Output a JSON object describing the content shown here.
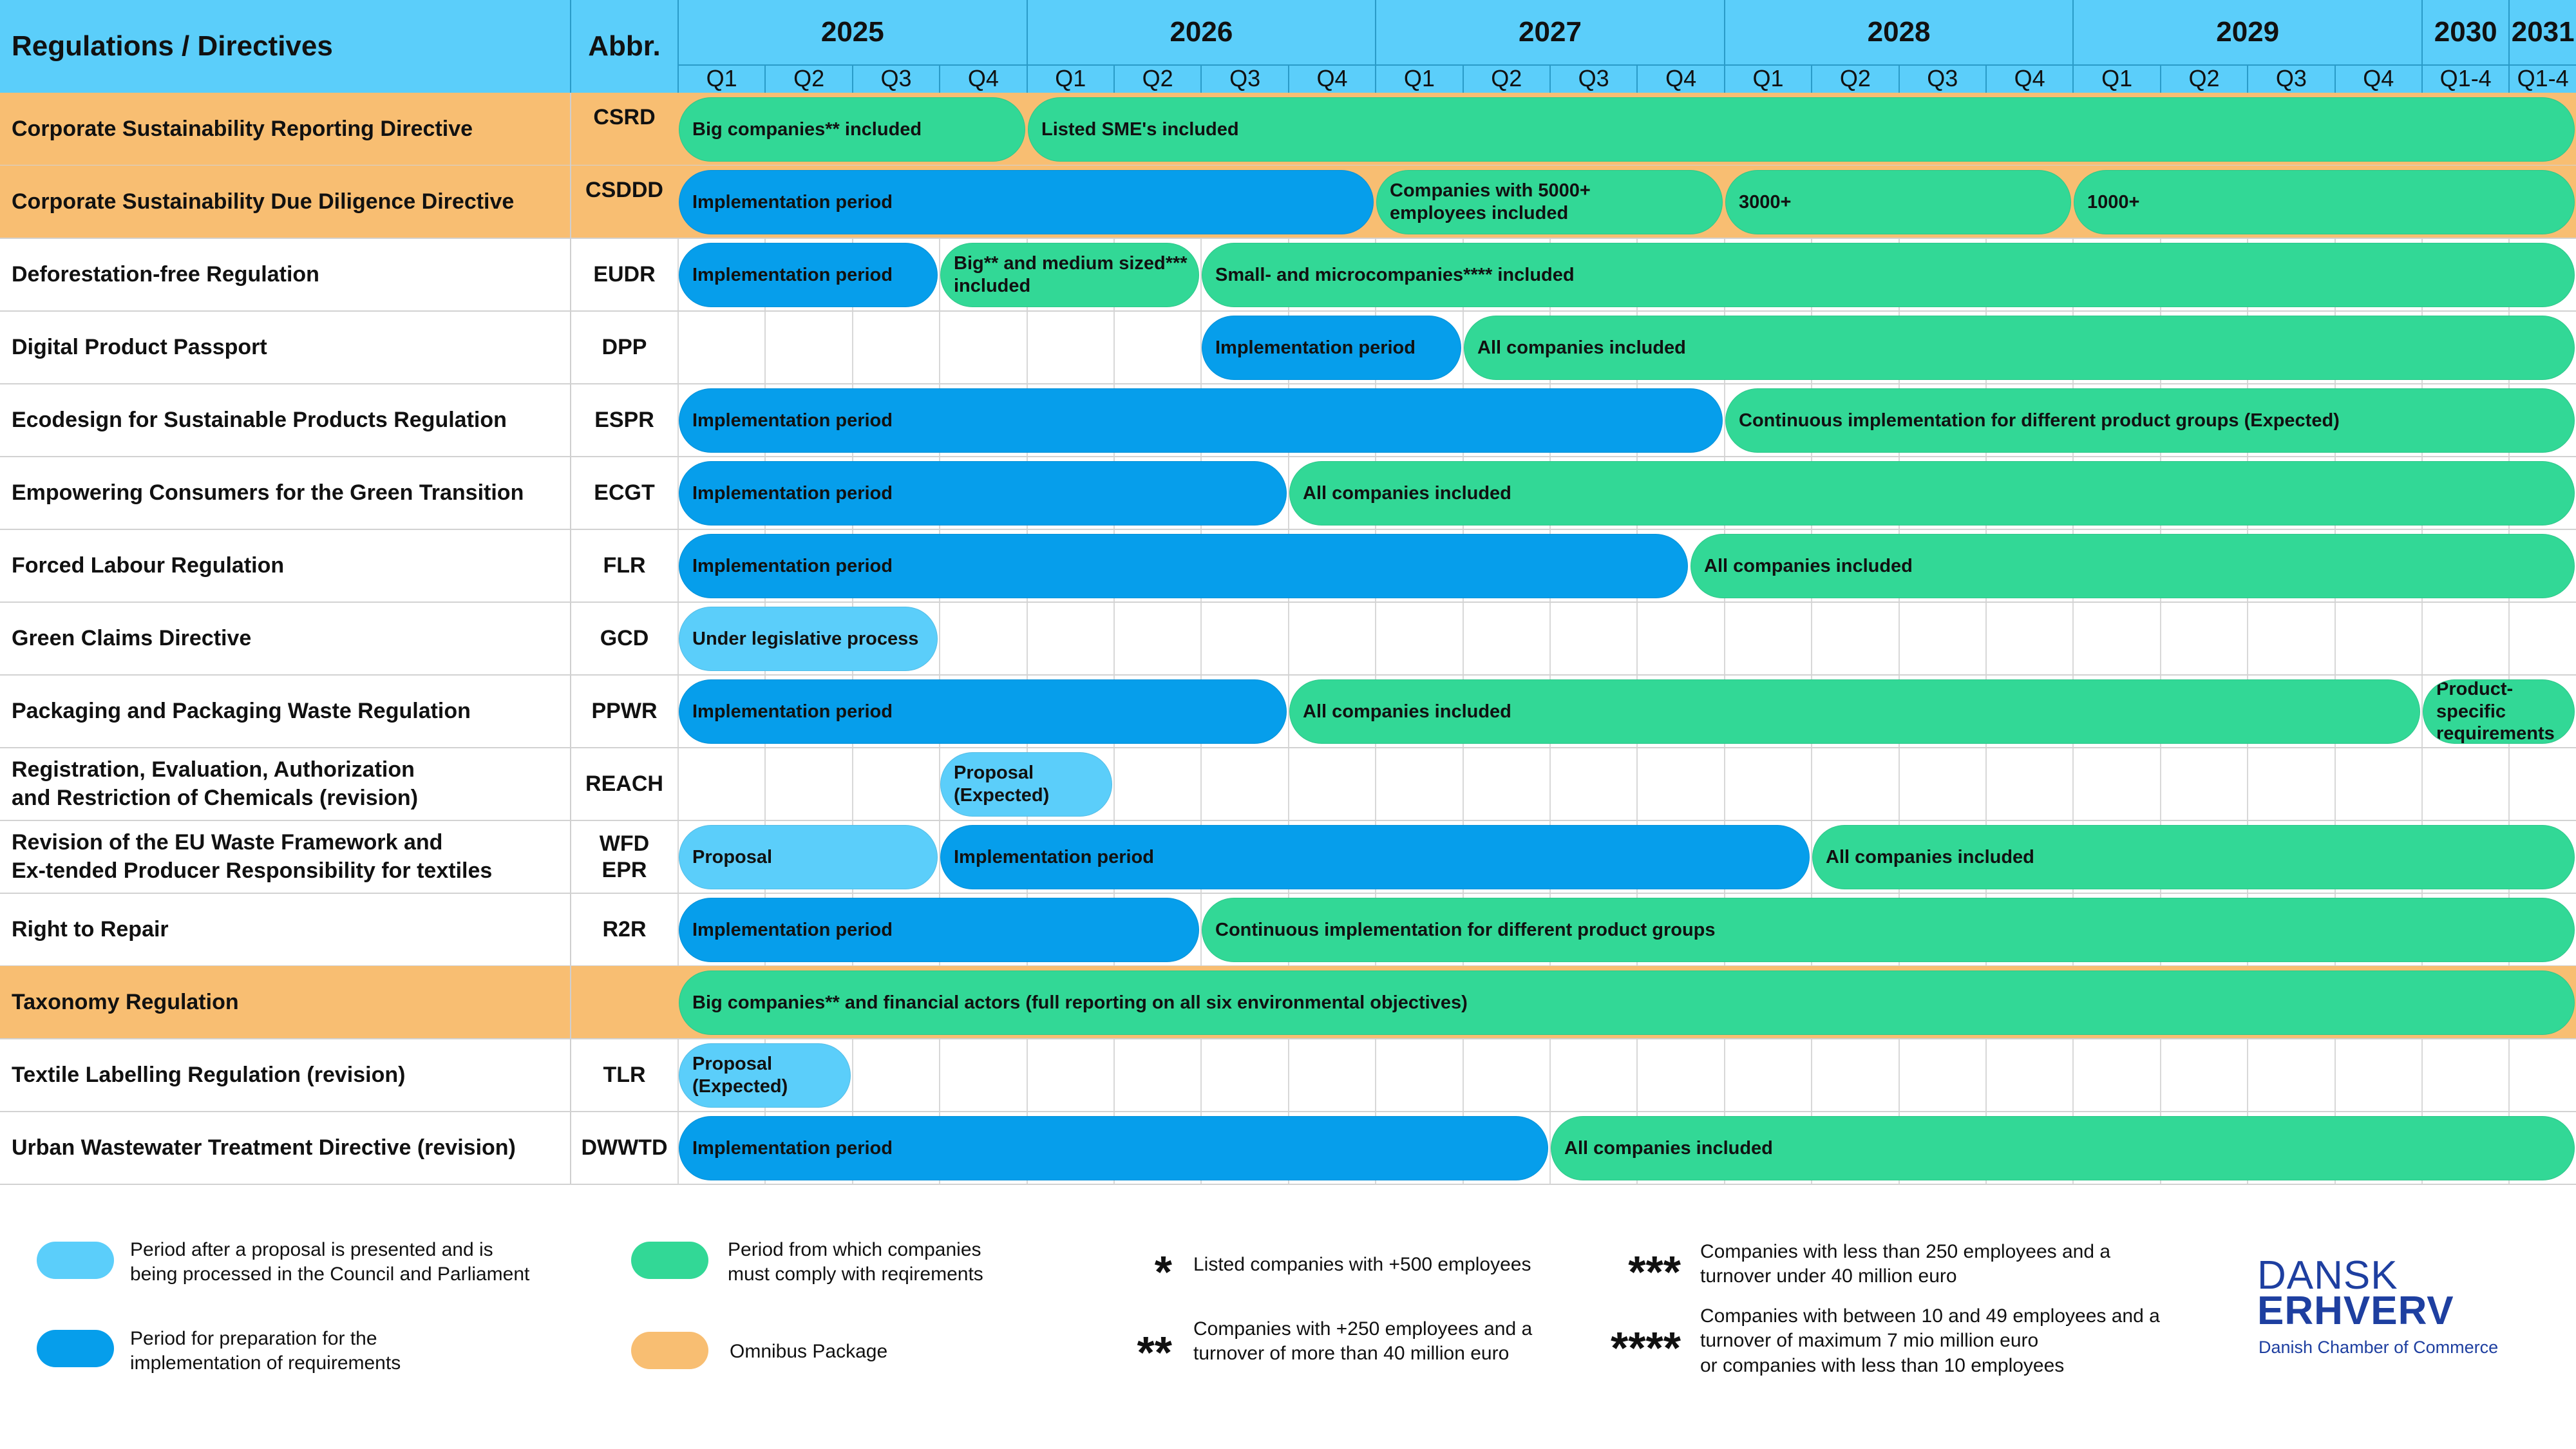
{
  "header": {
    "title": "Regulations / Directives",
    "abbr": "Abbr."
  },
  "colors": {
    "header": "#5BCEFA",
    "proposal": "#5BCEFA",
    "implementation": "#069EEB",
    "comply": "#32D896",
    "omnibus": "#F8BE72"
  },
  "chart_data": {
    "type": "gantt",
    "years": [
      {
        "label": "2025",
        "quarters": [
          "Q1",
          "Q2",
          "Q3",
          "Q4"
        ]
      },
      {
        "label": "2026",
        "quarters": [
          "Q1",
          "Q2",
          "Q3",
          "Q4"
        ]
      },
      {
        "label": "2027",
        "quarters": [
          "Q1",
          "Q2",
          "Q3",
          "Q4"
        ]
      },
      {
        "label": "2028",
        "quarters": [
          "Q1",
          "Q2",
          "Q3",
          "Q4"
        ]
      },
      {
        "label": "2029",
        "quarters": [
          "Q1",
          "Q2",
          "Q3",
          "Q4"
        ]
      },
      {
        "label": "2030",
        "quarters": [
          "Q1-4"
        ]
      },
      {
        "label": "2031",
        "quarters": [
          "Q1-4"
        ]
      }
    ],
    "rows": [
      {
        "name": "Corporate Sustainability Reporting Directive",
        "abbr": "CSRD",
        "omnibus": true,
        "bars": [
          {
            "start": 2025.0,
            "end": 2026.0,
            "kind": "comply",
            "label": "Big companies** included"
          },
          {
            "start": 2026.0,
            "end": 2031.75,
            "kind": "comply",
            "label": "Listed SME's included"
          }
        ]
      },
      {
        "name": "Corporate Sustainability Due Diligence Directive",
        "abbr": "CSDDD",
        "omnibus": true,
        "bars": [
          {
            "start": 2025.0,
            "end": 2027.0,
            "kind": "implementation",
            "label": "Implementation period"
          },
          {
            "start": 2027.0,
            "end": 2028.0,
            "kind": "comply",
            "label": "Companies with 5000+\nemployees included"
          },
          {
            "start": 2028.0,
            "end": 2029.0,
            "kind": "comply",
            "label": "3000+"
          },
          {
            "start": 2029.0,
            "end": 2031.75,
            "kind": "comply",
            "label": "1000+"
          }
        ]
      },
      {
        "name": "Deforestation-free Regulation",
        "abbr": "EUDR",
        "omnibus": false,
        "bars": [
          {
            "start": 2025.0,
            "end": 2025.75,
            "kind": "implementation",
            "label": "Implementation period"
          },
          {
            "start": 2025.75,
            "end": 2026.5,
            "kind": "comply",
            "label": "Big** and medium sized***\nincluded"
          },
          {
            "start": 2026.5,
            "end": 2031.75,
            "kind": "comply",
            "label": "Small- and microcompanies**** included"
          }
        ]
      },
      {
        "name": "Digital Product Passport",
        "abbr": "DPP",
        "omnibus": false,
        "bars": [
          {
            "start": 2026.5,
            "end": 2027.25,
            "kind": "implementation",
            "label": "Implementation period"
          },
          {
            "start": 2027.25,
            "end": 2031.75,
            "kind": "comply",
            "label": "All companies included"
          }
        ]
      },
      {
        "name": "Ecodesign for Sustainable Products Regulation",
        "abbr": "ESPR",
        "omnibus": false,
        "bars": [
          {
            "start": 2025.0,
            "end": 2028.0,
            "kind": "implementation",
            "label": "Implementation period"
          },
          {
            "start": 2028.0,
            "end": 2031.75,
            "kind": "comply",
            "label": "Continuous implementation for different product groups (Expected)"
          }
        ]
      },
      {
        "name": "Empowering Consumers for the Green Transition",
        "abbr": "ECGT",
        "omnibus": false,
        "bars": [
          {
            "start": 2025.0,
            "end": 2026.75,
            "kind": "implementation",
            "label": "Implementation period"
          },
          {
            "start": 2026.75,
            "end": 2031.75,
            "kind": "comply",
            "label": "All companies included"
          }
        ]
      },
      {
        "name": "Forced Labour Regulation",
        "abbr": "FLR",
        "omnibus": false,
        "bars": [
          {
            "start": 2025.0,
            "end": 2027.9,
            "kind": "implementation",
            "label": "Implementation period"
          },
          {
            "start": 2027.9,
            "end": 2031.75,
            "kind": "comply",
            "label": "All companies included"
          }
        ]
      },
      {
        "name": "Green Claims Directive",
        "abbr": "GCD",
        "omnibus": false,
        "bars": [
          {
            "start": 2025.0,
            "end": 2025.75,
            "kind": "proposal",
            "label": "Under legislative process"
          }
        ]
      },
      {
        "name": "Packaging and Packaging Waste Regulation",
        "abbr": "PPWR",
        "omnibus": false,
        "bars": [
          {
            "start": 2025.0,
            "end": 2026.75,
            "kind": "implementation",
            "label": "Implementation period"
          },
          {
            "start": 2026.75,
            "end": 2030.0,
            "kind": "comply",
            "label": "All companies included"
          },
          {
            "start": 2030.0,
            "end": 2031.75,
            "kind": "comply",
            "label": "Product-\nspecific\nrequirements"
          }
        ]
      },
      {
        "name": "Registration, Evaluation, Authorization\nand Restriction of Chemicals (revision)",
        "abbr": "REACH",
        "omnibus": false,
        "bars": [
          {
            "start": 2025.75,
            "end": 2026.25,
            "kind": "proposal",
            "label": "Proposal\n(Expected)"
          }
        ]
      },
      {
        "name": "Revision of the EU Waste Framework and\nEx-tended Producer Responsibility for textiles",
        "abbr": "WFD\nEPR",
        "omnibus": false,
        "bars": [
          {
            "start": 2025.0,
            "end": 2025.75,
            "kind": "proposal",
            "label": "Proposal"
          },
          {
            "start": 2025.75,
            "end": 2028.25,
            "kind": "implementation",
            "label": "Implementation period"
          },
          {
            "start": 2028.25,
            "end": 2031.75,
            "kind": "comply",
            "label": "All companies included"
          }
        ]
      },
      {
        "name": "Right to Repair",
        "abbr": "R2R",
        "omnibus": false,
        "bars": [
          {
            "start": 2025.0,
            "end": 2026.5,
            "kind": "implementation",
            "label": "Implementation period"
          },
          {
            "start": 2026.5,
            "end": 2031.75,
            "kind": "comply",
            "label": "Continuous implementation for different product groups"
          }
        ]
      },
      {
        "name": "Taxonomy Regulation",
        "abbr": "",
        "omnibus": true,
        "bars": [
          {
            "start": 2025.0,
            "end": 2031.75,
            "kind": "comply",
            "label": "Big companies** and financial actors (full reporting on all six environmental objectives)"
          }
        ]
      },
      {
        "name": "Textile Labelling Regulation (revision)",
        "abbr": "TLR",
        "omnibus": false,
        "bars": [
          {
            "start": 2025.0,
            "end": 2025.5,
            "kind": "proposal",
            "label": "Proposal\n(Expected)"
          }
        ]
      },
      {
        "name": "Urban Wastewater Treatment Directive (revision)",
        "abbr": "DWWTD",
        "omnibus": false,
        "bars": [
          {
            "start": 2025.0,
            "end": 2027.5,
            "kind": "implementation",
            "label": "Implementation period"
          },
          {
            "start": 2027.5,
            "end": 2031.75,
            "kind": "comply",
            "label": "All companies included"
          }
        ]
      }
    ]
  },
  "legend": {
    "proposal": "Period after a proposal is presented and is\nbeing processed in the Council and Parliament",
    "implementation": "Period for preparation for the\nimplementation of requirements",
    "comply": "Period from which companies\nmust comply with reqirements",
    "omnibus": "Omnibus Package"
  },
  "footnotes": [
    {
      "stars": "*",
      "text": "Listed companies with +500 employees"
    },
    {
      "stars": "**",
      "text": "Companies with +250 employees and a\nturnover of more than 40 million euro"
    },
    {
      "stars": "***",
      "text": "Companies with less than 250 employees and a\nturnover under 40 million euro"
    },
    {
      "stars": "****",
      "text": "Companies with between 10 and 49 employees and a\nturnover of maximum 7 mio million euro\nor companies with less than 10 employees"
    }
  ],
  "brand": {
    "line1": "DANSK",
    "line2": "ERHVERV",
    "tagline": "Danish Chamber of Commerce"
  }
}
